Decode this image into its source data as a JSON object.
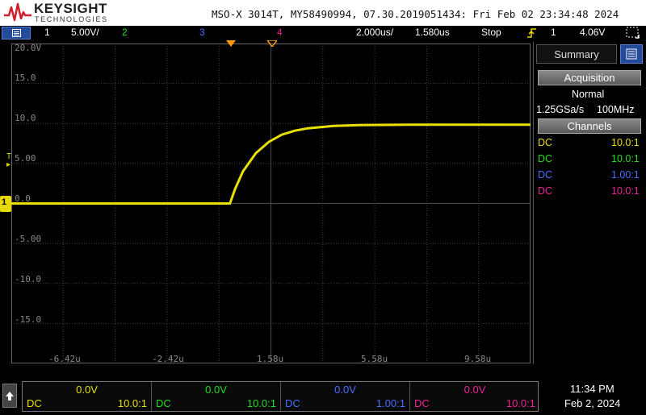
{
  "header": {
    "brand": "KEYSIGHT",
    "brand_sub": "TECHNOLOGIES",
    "instrument_info": "MSO-X 3014T, MY58490994, 07.30.2019051434: Fri Feb 02 23:34:48 2024"
  },
  "status_bar": {
    "ch1_number": "1",
    "ch1_scale": "5.00V/",
    "ch2_number": "2",
    "ch3_number": "3",
    "ch4_number": "4",
    "timebase": "2.000us/",
    "delay": "1.580us",
    "run_state": "Stop",
    "trigger_source": "1",
    "trigger_level": "4.06V"
  },
  "plot": {
    "y_ticks": [
      "20.0V",
      "15.0",
      "10.0",
      "5.00",
      "0.0",
      "-5.00",
      "-10.0",
      "-15.0"
    ],
    "x_ticks": [
      "-6.42u",
      "-2.42u",
      "1.58u",
      "5.58u",
      "9.58u"
    ],
    "ground_marker": "1",
    "trigger_marker": "T",
    "colors": {
      "ch1": "#e8e000",
      "grid": "#444444",
      "orange_marker": "#ff9900"
    }
  },
  "chart_data": {
    "type": "line",
    "series": [
      {
        "x": [
          -8.42,
          0.0,
          0.2,
          0.5,
          1.0,
          1.5,
          2.0,
          2.5,
          3.0,
          4.0,
          5.0,
          7.0,
          10.0,
          11.58
        ],
        "y": [
          0.0,
          0.0,
          1.8,
          4.0,
          6.3,
          7.7,
          8.6,
          9.1,
          9.4,
          9.7,
          9.8,
          9.85,
          9.85,
          9.85
        ]
      }
    ],
    "xlim": [
      -8.42,
      11.58
    ],
    "ylim": [
      -20.0,
      20.0
    ],
    "grid": true
  },
  "sidebar": {
    "tab_label": "Summary",
    "acquisition_label": "Acquisition",
    "acq_mode": "Normal",
    "sample_rate": "1.25GSa/s",
    "bandwidth": "100MHz",
    "channels_label": "Channels",
    "channels": [
      {
        "coupling": "DC",
        "probe": "10.0:1",
        "color": "#e8e000"
      },
      {
        "coupling": "DC",
        "probe": "10.0:1",
        "color": "#22dd22"
      },
      {
        "coupling": "DC",
        "probe": "1.00:1",
        "color": "#4a6cff"
      },
      {
        "coupling": "DC",
        "probe": "10.0:1",
        "color": "#ee2299"
      }
    ]
  },
  "bottom": {
    "home_icon": "up-arrow-icon",
    "channels": [
      {
        "offset": "0.0V",
        "coupling": "DC",
        "probe": "10.0:1",
        "color": "#e8e000"
      },
      {
        "offset": "0.0V",
        "coupling": "DC",
        "probe": "10.0:1",
        "color": "#22dd22"
      },
      {
        "offset": "0.0V",
        "coupling": "DC",
        "probe": "1.00:1",
        "color": "#4a6cff"
      },
      {
        "offset": "0.0V",
        "coupling": "DC",
        "probe": "10.0:1",
        "color": "#ee2299"
      }
    ],
    "time": "11:34 PM",
    "date": "Feb 2, 2024"
  }
}
